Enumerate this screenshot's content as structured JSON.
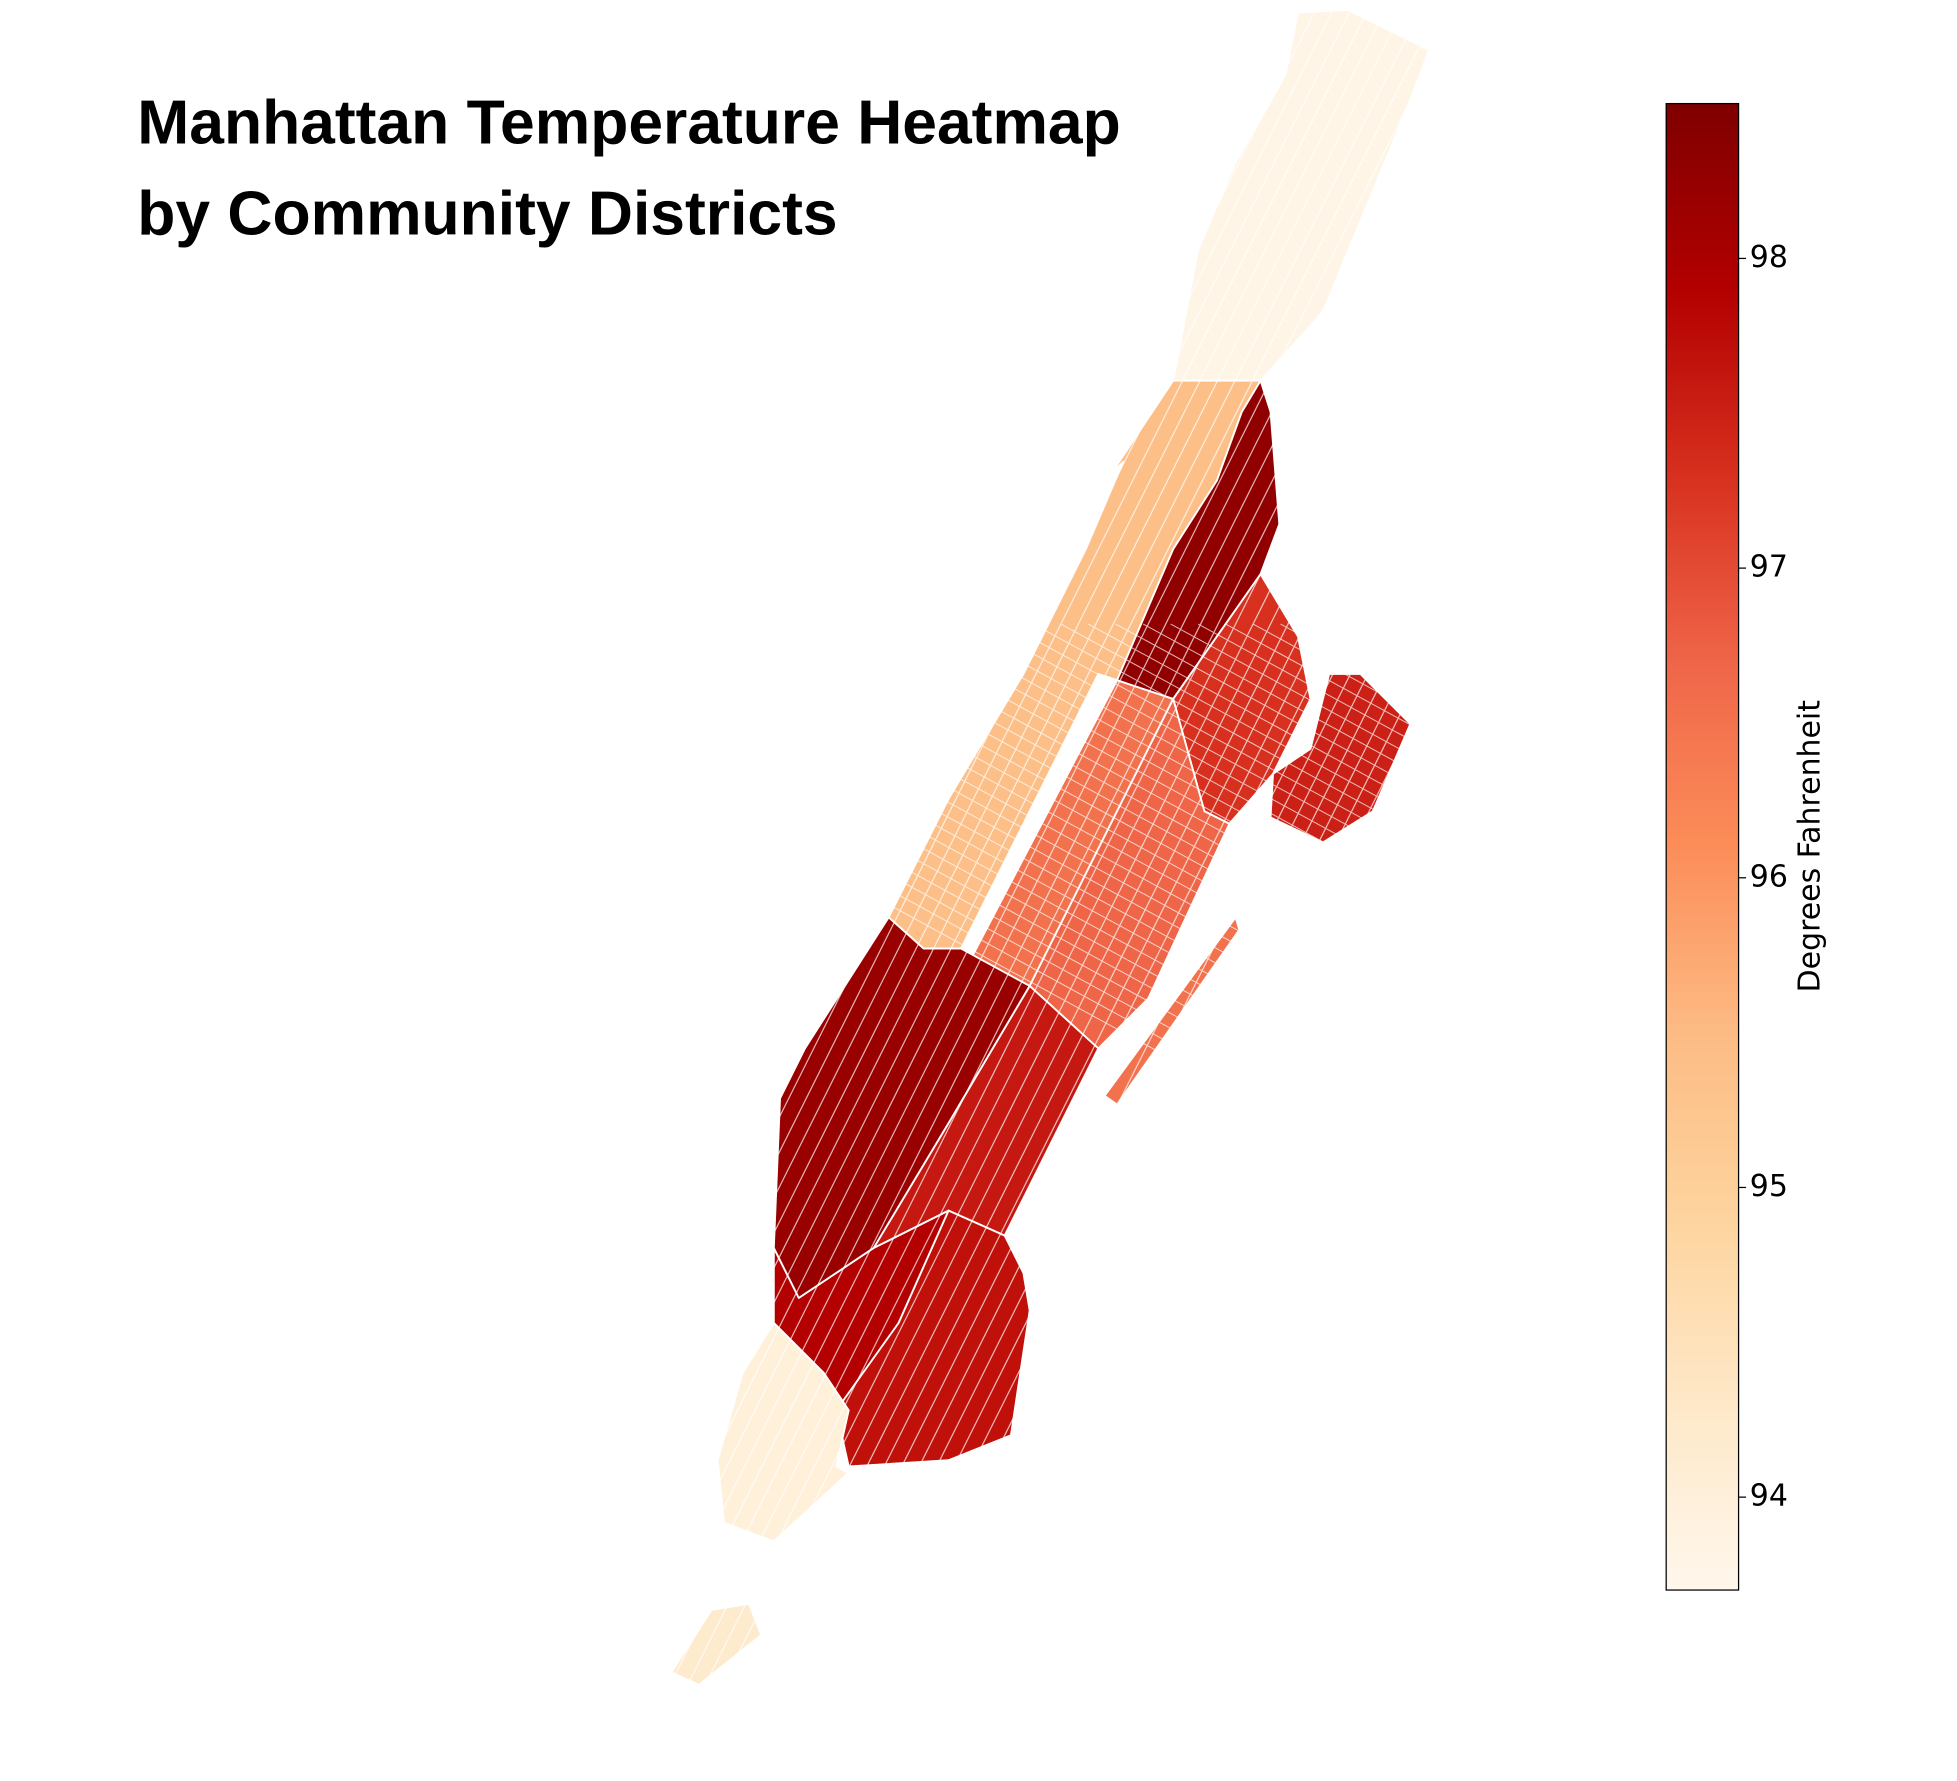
{
  "chart_data": {
    "type": "choropleth",
    "title": [
      "Manhattan Temperature Heatmap",
      "by Community Districts"
    ],
    "colorbar_label": "Degrees Fahrenheit",
    "values": [
      93.8,
      95.4,
      96.5,
      98.3,
      97.3,
      96.7,
      97.5,
      96.5,
      98.2,
      97.6,
      97.9,
      97.7,
      94.0,
      94.2
    ],
    "vlim": [
      93.7,
      98.5
    ],
    "ticks": [
      94,
      95,
      96,
      97,
      98
    ],
    "colormap": [
      "#fff7ec",
      "#fee8c8",
      "#fdd49e",
      "#fdbb84",
      "#fc8d59",
      "#ef6548",
      "#d7301f",
      "#b30000",
      "#7f0000"
    ]
  }
}
